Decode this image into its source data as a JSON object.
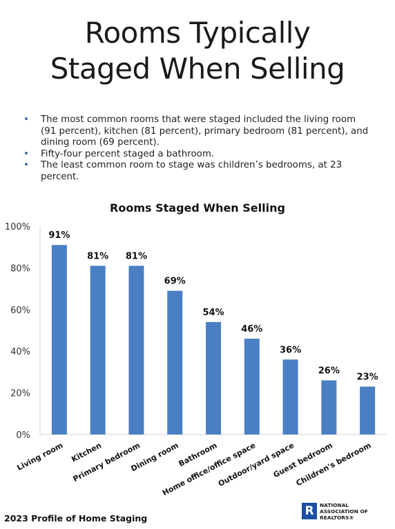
{
  "header": {
    "title_line1": "Rooms Typically",
    "title_line2": "Staged When Selling"
  },
  "bullets": [
    "The most common rooms that were staged included the living room (91 percent), kitchen (81 percent), primary bedroom (81 percent), and dining room (69 percent).",
    "Fifty-four percent staged a bathroom.",
    "The least common room to stage was children’s bedrooms, at 23 percent."
  ],
  "chart_data": {
    "type": "bar",
    "title": "Rooms Staged When Selling",
    "xlabel": "",
    "ylabel": "",
    "categories": [
      "Living room",
      "Kitchen",
      "Primary bedroom",
      "Dining room",
      "Bathroom",
      "Home office/office space",
      "Outdoor/yard space",
      "Guest bedroom",
      "Children's bedroom"
    ],
    "values": [
      91,
      81,
      81,
      69,
      54,
      46,
      36,
      26,
      23
    ],
    "data_labels": [
      "91%",
      "81%",
      "81%",
      "69%",
      "54%",
      "46%",
      "36%",
      "26%",
      "23%"
    ],
    "ylim": [
      0,
      100
    ],
    "yticks": [
      0,
      20,
      40,
      60,
      80,
      100
    ],
    "ytick_labels": [
      "0%",
      "20%",
      "40%",
      "60%",
      "80%",
      "100%"
    ],
    "grid": false,
    "legend": "none",
    "bar_color": "#4a7fc4"
  },
  "footer": {
    "source": "2023 Profile of Home Staging",
    "logo_mark": "R",
    "logo_line1": "NATIONAL",
    "logo_line2": "ASSOCIATION OF",
    "logo_line3": "REALTORS®"
  }
}
